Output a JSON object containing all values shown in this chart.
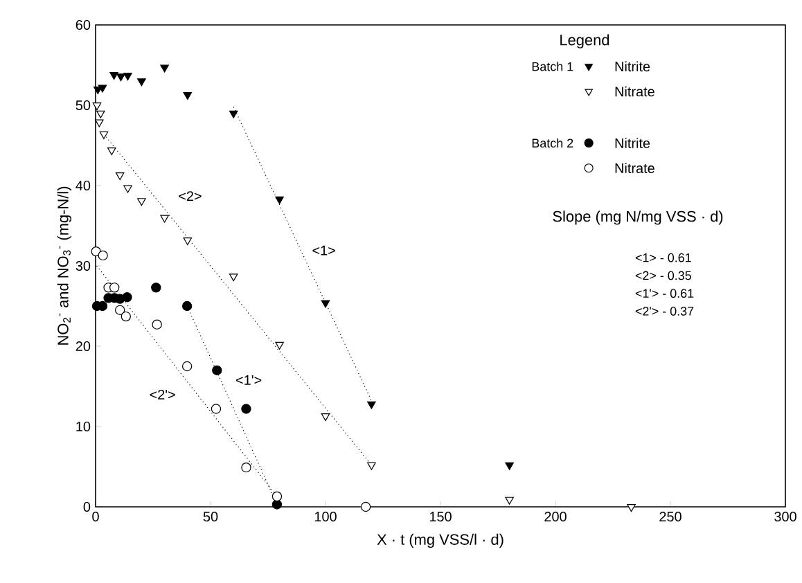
{
  "chart_data": {
    "type": "scatter",
    "xlabel": "X · t (mg VSS/l · d)",
    "ylabel": "NO$_{2}$$^{-}$ and NO$_{3}$$^{-}$ (mg-N/l)",
    "legend_title": "Legend",
    "legend": "top right",
    "grid": false,
    "xlim": [
      0,
      300
    ],
    "ylim": [
      0,
      60
    ],
    "xticks": [
      0,
      50,
      100,
      150,
      200,
      250,
      300
    ],
    "yticks": [
      0,
      10,
      20,
      30,
      40,
      50,
      60
    ],
    "series": [
      {
        "name": "Nitrite",
        "marker": "triangle",
        "color": "#000000",
        "x": [
          1,
          3,
          8,
          11,
          14,
          20,
          30,
          40,
          60,
          80,
          100,
          120,
          180
        ],
        "values": [
          52,
          52.2,
          53.8,
          53.6,
          53.7,
          53,
          54.7,
          51.3,
          49,
          38.3,
          25.4,
          12.8,
          5.2
        ]
      },
      {
        "name": "Nitrate",
        "marker": "triangle",
        "color": "#ffffff",
        "x": [
          0.6,
          2.2,
          1.6,
          3.6,
          7,
          10.6,
          14,
          20,
          30,
          40,
          60,
          80,
          100,
          120,
          180,
          233
        ],
        "values": [
          50,
          49,
          47.9,
          46.4,
          44.4,
          41.3,
          39.7,
          38.1,
          36,
          33.2,
          28.7,
          20.2,
          11.3,
          5.2,
          0.9,
          0
        ]
      },
      {
        "name": "Nitrite",
        "marker": "circle",
        "color": "#000000",
        "x": [
          0.6,
          3,
          5.6,
          8.2,
          10.6,
          13.7,
          26.3,
          39.8,
          52.8,
          65.5,
          78.9
        ],
        "values": [
          25,
          25,
          26,
          26,
          25.9,
          26.1,
          27.3,
          25,
          17,
          12.2,
          0.3
        ]
      },
      {
        "name": "Nitrate",
        "marker": "circle",
        "color": "#ffffff",
        "x": [
          0.2,
          3.2,
          5.6,
          8.2,
          10.6,
          13.2,
          26.7,
          39.8,
          52.4,
          65.5,
          78.9,
          117.5
        ],
        "values": [
          31.8,
          31.3,
          27.3,
          27.3,
          24.5,
          23.7,
          22.7,
          17.5,
          12.2,
          4.9,
          1.3,
          0
        ]
      },
      {
        "type": "line",
        "line_style": "dotted",
        "marker": "none",
        "color": "#000000",
        "x": [
          60,
          120
        ],
        "values": [
          49.8,
          13.2
        ]
      },
      {
        "type": "line",
        "line_style": "dotted",
        "marker": "none",
        "color": "#000000",
        "x": [
          3.6,
          120
        ],
        "values": [
          46.4,
          5.2
        ]
      },
      {
        "type": "line",
        "line_style": "dotted",
        "marker": "none",
        "color": "#000000",
        "x": [
          39.8,
          78.9
        ],
        "values": [
          25,
          0.3
        ]
      },
      {
        "type": "line",
        "line_style": "dotted",
        "marker": "none",
        "color": "#000000",
        "x": [
          0.5,
          78.9
        ],
        "values": [
          30,
          1.3
        ]
      }
    ],
    "annotations": [
      "Batch 1",
      "Batch 2",
      "Slope (mg N/mg VSS · d)",
      "<1>   - 0.61",
      "<2>   - 0.35",
      "<1'>  - 0.61",
      "<2'>  - 0.37",
      "<1>",
      "<2>",
      "<1'>",
      "<2'>"
    ]
  }
}
